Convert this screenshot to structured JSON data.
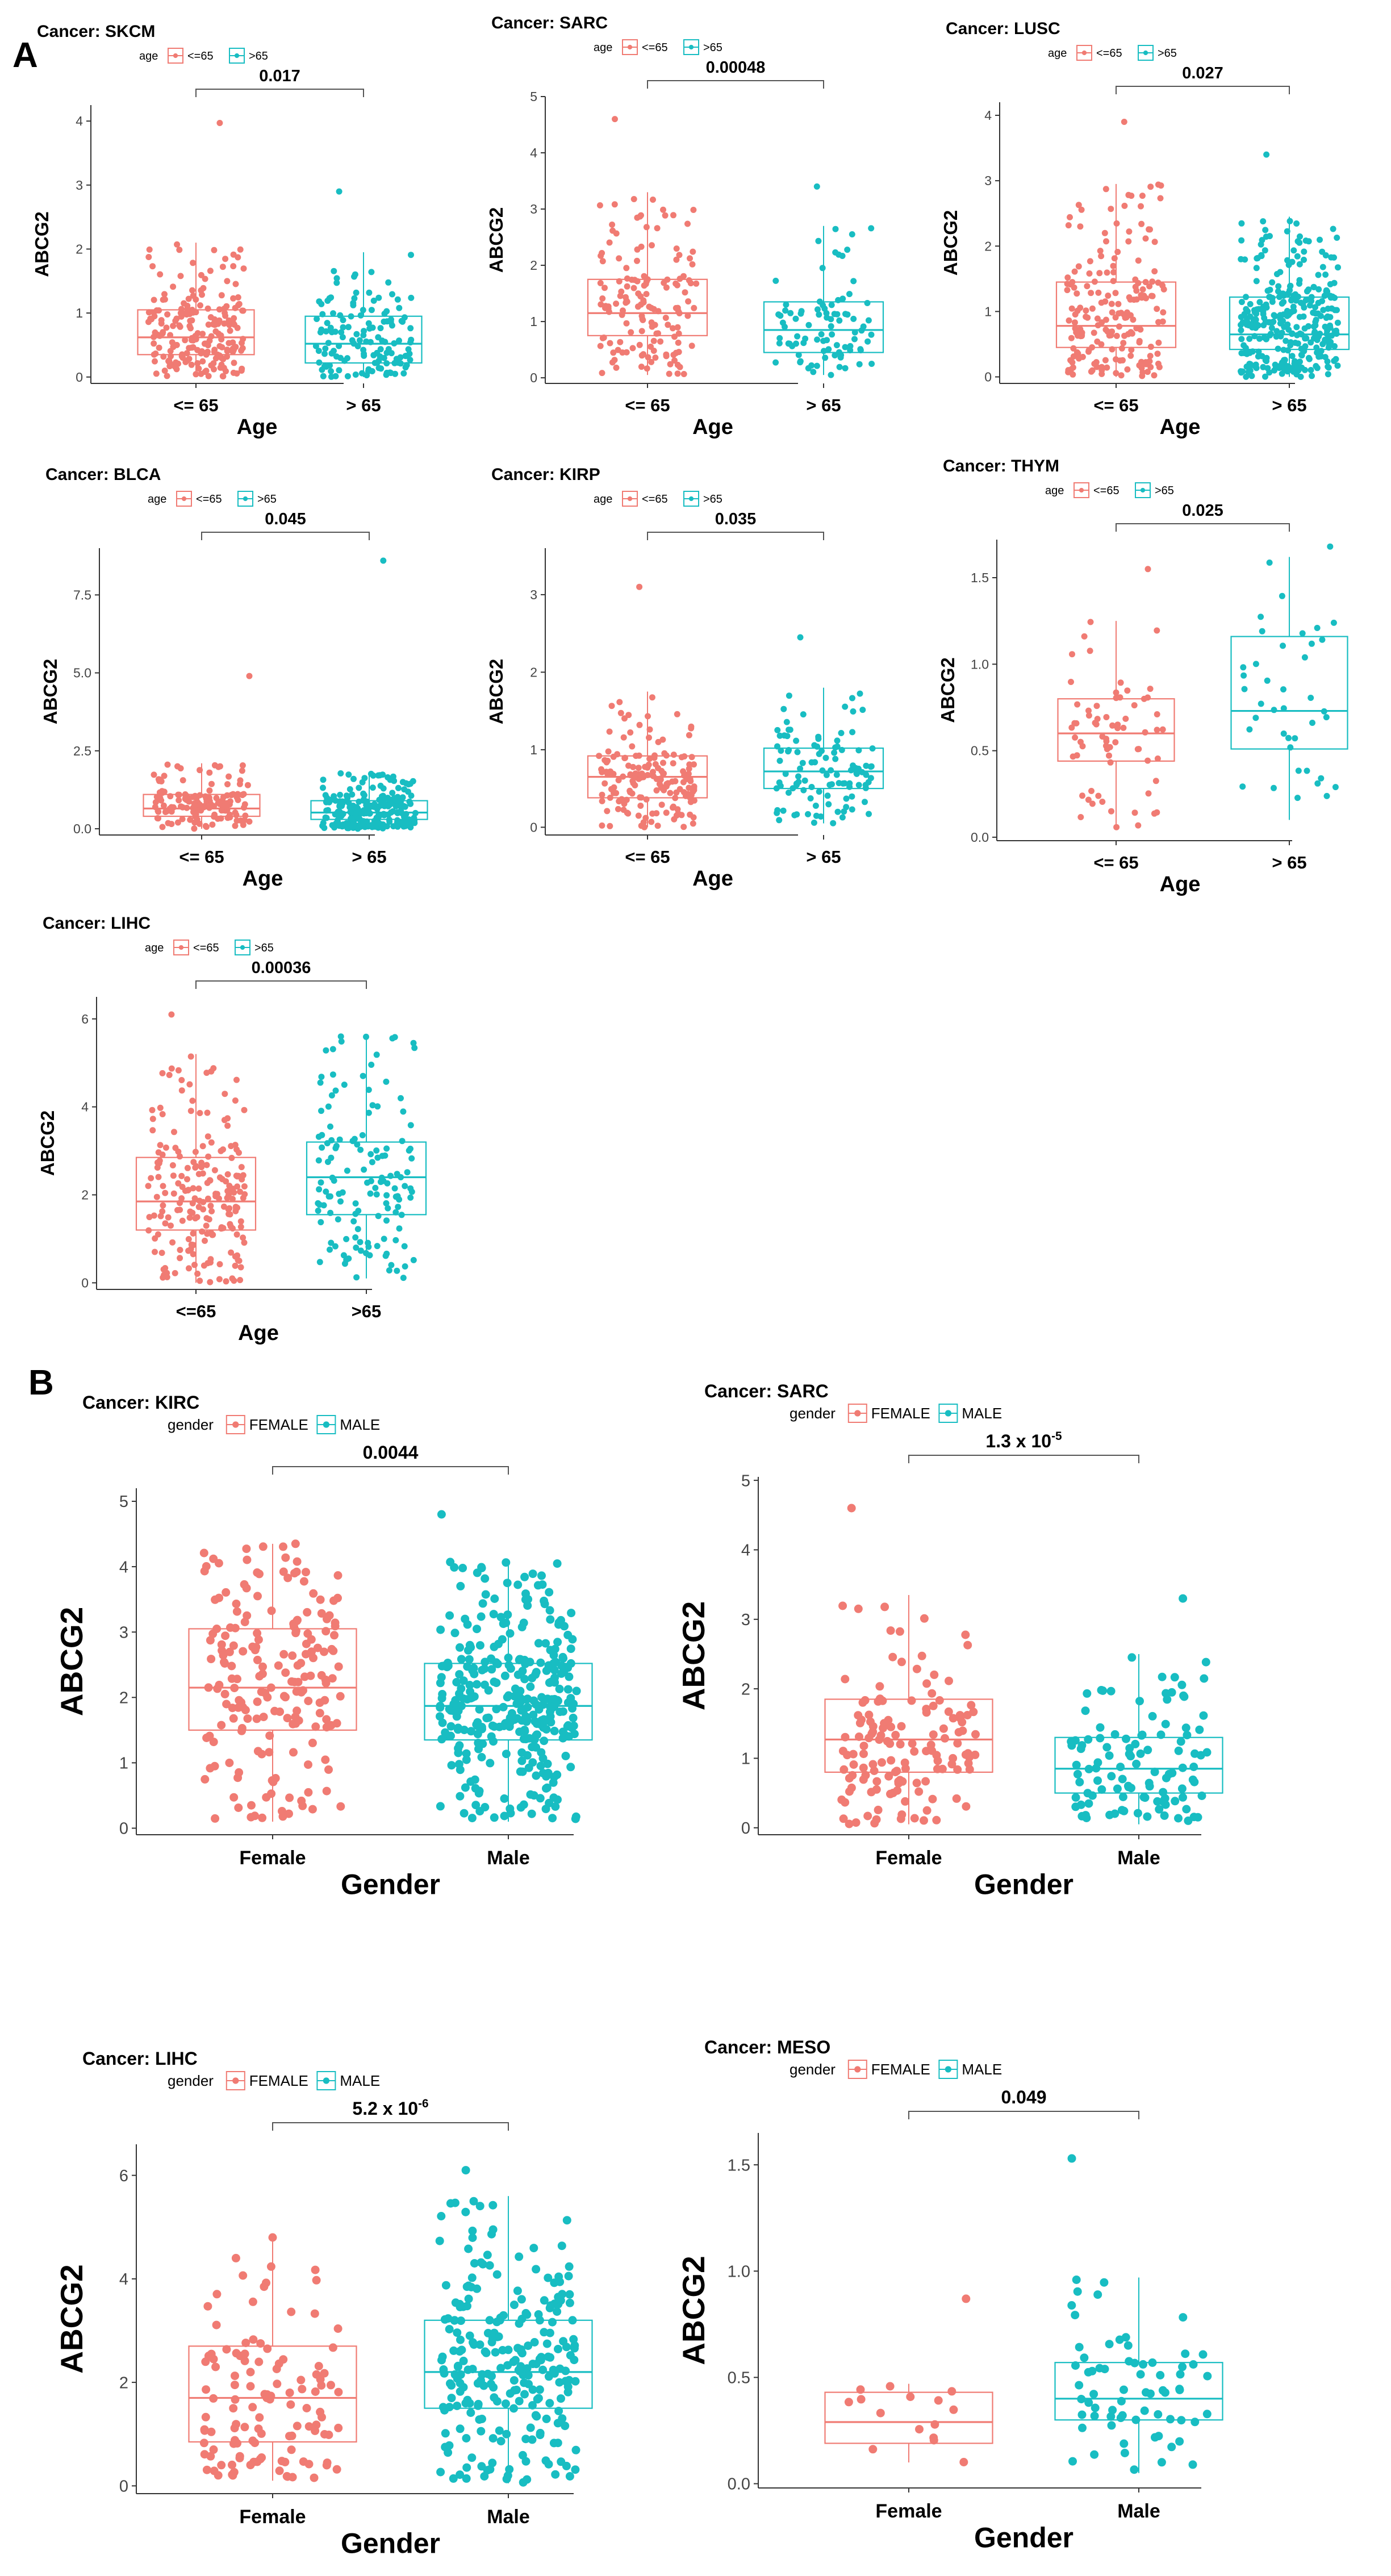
{
  "panel_labels": [
    "A",
    "B"
  ],
  "colors": {
    "group1": "#F07B73",
    "group2": "#18BDC2",
    "axis": "#333333",
    "bracket": "#555555"
  },
  "chart_data": [
    {
      "panel": "A",
      "type": "box",
      "title": "Cancer: SKCM",
      "legend": {
        "title": "age",
        "entries": [
          "<=65",
          ">65"
        ]
      },
      "categories": [
        "<= 65",
        "> 65"
      ],
      "xlabel": "Age",
      "ylabel": "ABCG2",
      "ylim": [
        -0.1,
        4.25
      ],
      "yticks": [
        0,
        1,
        2,
        3,
        4
      ],
      "ytick_labels": [
        "0",
        "1",
        "2",
        "3",
        "4"
      ],
      "pvalue": {
        "mantissa": "0.017"
      },
      "jitter_max": [
        3.97,
        2.9
      ],
      "boxes": [
        {
          "q1": 0.35,
          "median": 0.62,
          "q3": 1.05,
          "whisker_low": 0.0,
          "whisker_high": 2.1,
          "n": 210
        },
        {
          "q1": 0.22,
          "median": 0.52,
          "q3": 0.95,
          "whisker_low": 0.0,
          "whisker_high": 1.95,
          "n": 140
        }
      ]
    },
    {
      "panel": "A",
      "type": "box",
      "title": "Cancer: SARC",
      "legend": {
        "title": "age",
        "entries": [
          "<=65",
          ">65"
        ]
      },
      "categories": [
        "<= 65",
        "> 65"
      ],
      "xlabel": "Age",
      "ylabel": "ABCG2",
      "ylim": [
        -0.1,
        5.0
      ],
      "yticks": [
        0,
        1,
        2,
        3,
        4,
        5
      ],
      "ytick_labels": [
        "0",
        "1",
        "2",
        "3",
        "4",
        "5"
      ],
      "pvalue": {
        "mantissa": "0.00048"
      },
      "jitter_max": [
        4.6,
        3.4
      ],
      "boxes": [
        {
          "q1": 0.75,
          "median": 1.15,
          "q3": 1.75,
          "whisker_low": 0.05,
          "whisker_high": 3.3,
          "n": 150
        },
        {
          "q1": 0.45,
          "median": 0.85,
          "q3": 1.35,
          "whisker_low": 0.05,
          "whisker_high": 2.7,
          "n": 90
        }
      ]
    },
    {
      "panel": "A",
      "type": "box",
      "title": "Cancer: LUSC",
      "legend": {
        "title": "age",
        "entries": [
          "<=65",
          ">65"
        ]
      },
      "categories": [
        "<= 65",
        "> 65"
      ],
      "xlabel": "Age",
      "ylabel": "ABCG2",
      "ylim": [
        -0.1,
        4.2
      ],
      "yticks": [
        0,
        1,
        2,
        3,
        4
      ],
      "ytick_labels": [
        "0",
        "1",
        "2",
        "3",
        "4"
      ],
      "pvalue": {
        "mantissa": "0.027"
      },
      "jitter_max": [
        3.9,
        3.4
      ],
      "boxes": [
        {
          "q1": 0.45,
          "median": 0.78,
          "q3": 1.45,
          "whisker_low": 0.0,
          "whisker_high": 2.95,
          "n": 190
        },
        {
          "q1": 0.42,
          "median": 0.65,
          "q3": 1.22,
          "whisker_low": 0.0,
          "whisker_high": 2.45,
          "n": 320
        }
      ]
    },
    {
      "panel": "A",
      "type": "box",
      "title": "Cancer: BLCA",
      "legend": {
        "title": "age",
        "entries": [
          "<=65",
          ">65"
        ]
      },
      "categories": [
        "<= 65",
        "> 65"
      ],
      "xlabel": "Age",
      "ylabel": "ABCG2",
      "ylim": [
        -0.2,
        9.0
      ],
      "yticks": [
        0,
        2.5,
        5,
        7.5
      ],
      "ytick_labels": [
        "0.0",
        "2.5",
        "5.0",
        "7.5"
      ],
      "pvalue": {
        "mantissa": "0.045"
      },
      "jitter_max": [
        4.9,
        8.6
      ],
      "boxes": [
        {
          "q1": 0.4,
          "median": 0.65,
          "q3": 1.1,
          "whisker_low": 0.0,
          "whisker_high": 2.1,
          "n": 150
        },
        {
          "q1": 0.3,
          "median": 0.52,
          "q3": 0.9,
          "whisker_low": 0.0,
          "whisker_high": 1.8,
          "n": 230
        }
      ]
    },
    {
      "panel": "A",
      "type": "box",
      "title": "Cancer: KIRP",
      "legend": {
        "title": "age",
        "entries": [
          "<=65",
          ">65"
        ]
      },
      "categories": [
        "<= 65",
        "> 65"
      ],
      "xlabel": "Age",
      "ylabel": "ABCG2",
      "ylim": [
        -0.1,
        3.6
      ],
      "yticks": [
        0,
        1,
        2,
        3
      ],
      "ytick_labels": [
        "0",
        "1",
        "2",
        "3"
      ],
      "pvalue": {
        "mantissa": "0.035"
      },
      "jitter_max": [
        3.1,
        2.45
      ],
      "boxes": [
        {
          "q1": 0.38,
          "median": 0.65,
          "q3": 0.92,
          "whisker_low": 0.0,
          "whisker_high": 1.75,
          "n": 170
        },
        {
          "q1": 0.5,
          "median": 0.72,
          "q3": 1.02,
          "whisker_low": 0.05,
          "whisker_high": 1.8,
          "n": 110
        }
      ]
    },
    {
      "panel": "A",
      "type": "box",
      "title": "Cancer: THYM",
      "legend": {
        "title": "age",
        "entries": [
          "<=65",
          ">65"
        ]
      },
      "categories": [
        "<= 65",
        "> 65"
      ],
      "xlabel": "Age",
      "ylabel": "ABCG2",
      "ylim": [
        -0.02,
        1.72
      ],
      "yticks": [
        0,
        0.5,
        1.0,
        1.5
      ],
      "ytick_labels": [
        "0.0",
        "0.5",
        "1.0",
        "1.5"
      ],
      "pvalue": {
        "mantissa": "0.025"
      },
      "jitter_max": [
        1.55,
        1.68
      ],
      "boxes": [
        {
          "q1": 0.44,
          "median": 0.6,
          "q3": 0.8,
          "whisker_low": 0.05,
          "whisker_high": 1.25,
          "n": 70
        },
        {
          "q1": 0.51,
          "median": 0.73,
          "q3": 1.16,
          "whisker_low": 0.1,
          "whisker_high": 1.62,
          "n": 40
        }
      ]
    },
    {
      "panel": "A",
      "type": "box",
      "title": "Cancer: LIHC",
      "legend": {
        "title": "age",
        "entries": [
          "<=65",
          ">65"
        ]
      },
      "categories": [
        "<=65",
        ">65"
      ],
      "xlabel": "Age",
      "ylabel": "ABCG2",
      "ylim": [
        -0.15,
        6.5
      ],
      "yticks": [
        0,
        2,
        4,
        6
      ],
      "ytick_labels": [
        "0",
        "2",
        "4",
        "6"
      ],
      "pvalue": {
        "mantissa": "0.00036"
      },
      "jitter_max": [
        6.1,
        5.6
      ],
      "boxes": [
        {
          "q1": 1.2,
          "median": 1.85,
          "q3": 2.85,
          "whisker_low": 0.0,
          "whisker_high": 5.2,
          "n": 210
        },
        {
          "q1": 1.55,
          "median": 2.4,
          "q3": 3.2,
          "whisker_low": 0.1,
          "whisker_high": 5.6,
          "n": 140
        }
      ]
    },
    {
      "panel": "B",
      "type": "box",
      "title": "Cancer: KIRC",
      "legend": {
        "title": "gender",
        "entries": [
          "FEMALE",
          "MALE"
        ]
      },
      "categories": [
        "Female",
        "Male"
      ],
      "xlabel": "Gender",
      "ylabel": "ABCG2",
      "ylim": [
        -0.1,
        5.2
      ],
      "yticks": [
        0,
        1,
        2,
        3,
        4,
        5
      ],
      "ytick_labels": [
        "0",
        "1",
        "2",
        "3",
        "4",
        "5"
      ],
      "pvalue": {
        "mantissa": "0.0044"
      },
      "jitter_max": [
        4.35,
        4.8
      ],
      "boxes": [
        {
          "q1": 1.5,
          "median": 2.15,
          "q3": 3.05,
          "whisker_low": 0.1,
          "whisker_high": 4.35,
          "n": 190
        },
        {
          "q1": 1.35,
          "median": 1.87,
          "q3": 2.52,
          "whisker_low": 0.1,
          "whisker_high": 4.1,
          "n": 340
        }
      ]
    },
    {
      "panel": "B",
      "type": "box",
      "title": "Cancer: SARC",
      "legend": {
        "title": "gender",
        "entries": [
          "FEMALE",
          "MALE"
        ]
      },
      "categories": [
        "Female",
        "Male"
      ],
      "xlabel": "Gender",
      "ylabel": "ABCG2",
      "ylim": [
        -0.1,
        5.05
      ],
      "yticks": [
        0,
        1,
        2,
        3,
        4,
        5
      ],
      "ytick_labels": [
        "0",
        "1",
        "2",
        "3",
        "4",
        "5"
      ],
      "pvalue": {
        "mantissa": "1.3  x 10",
        "exponent": "-5"
      },
      "jitter_max": [
        4.6,
        3.3
      ],
      "boxes": [
        {
          "q1": 0.8,
          "median": 1.27,
          "q3": 1.85,
          "whisker_low": 0.05,
          "whisker_high": 3.35,
          "n": 140
        },
        {
          "q1": 0.5,
          "median": 0.85,
          "q3": 1.3,
          "whisker_low": 0.05,
          "whisker_high": 2.5,
          "n": 110
        }
      ]
    },
    {
      "panel": "B",
      "type": "box",
      "title": "Cancer: LIHC",
      "legend": {
        "title": "gender",
        "entries": [
          "FEMALE",
          "MALE"
        ]
      },
      "categories": [
        "Female",
        "Male"
      ],
      "xlabel": "Gender",
      "ylabel": "ABCG2",
      "ylim": [
        -0.15,
        6.6
      ],
      "yticks": [
        0,
        2,
        4,
        6
      ],
      "ytick_labels": [
        "0",
        "2",
        "4",
        "6"
      ],
      "pvalue": {
        "mantissa": "5.2  x 10",
        "exponent": "-6"
      },
      "jitter_max": [
        4.8,
        6.1
      ],
      "boxes": [
        {
          "q1": 0.85,
          "median": 1.7,
          "q3": 2.7,
          "whisker_low": 0.1,
          "whisker_high": 4.75,
          "n": 120
        },
        {
          "q1": 1.5,
          "median": 2.2,
          "q3": 3.2,
          "whisker_low": 0.05,
          "whisker_high": 5.6,
          "n": 250
        }
      ]
    },
    {
      "panel": "B",
      "type": "box",
      "title": "Cancer: MESO",
      "legend": {
        "title": "gender",
        "entries": [
          "FEMALE",
          "MALE"
        ]
      },
      "categories": [
        "Female",
        "Male"
      ],
      "xlabel": "Gender",
      "ylabel": "ABCG2",
      "ylim": [
        -0.02,
        1.65
      ],
      "yticks": [
        0,
        0.5,
        1.0,
        1.5
      ],
      "ytick_labels": [
        "0.0",
        "0.5",
        "1.0",
        "1.5"
      ],
      "pvalue": {
        "mantissa": "0.049"
      },
      "jitter_max": [
        0.87,
        1.53
      ],
      "boxes": [
        {
          "q1": 0.19,
          "median": 0.29,
          "q3": 0.43,
          "whisker_low": 0.1,
          "whisker_high": 0.47,
          "n": 16
        },
        {
          "q1": 0.3,
          "median": 0.4,
          "q3": 0.57,
          "whisker_low": 0.05,
          "whisker_high": 0.97,
          "n": 70
        }
      ]
    }
  ]
}
